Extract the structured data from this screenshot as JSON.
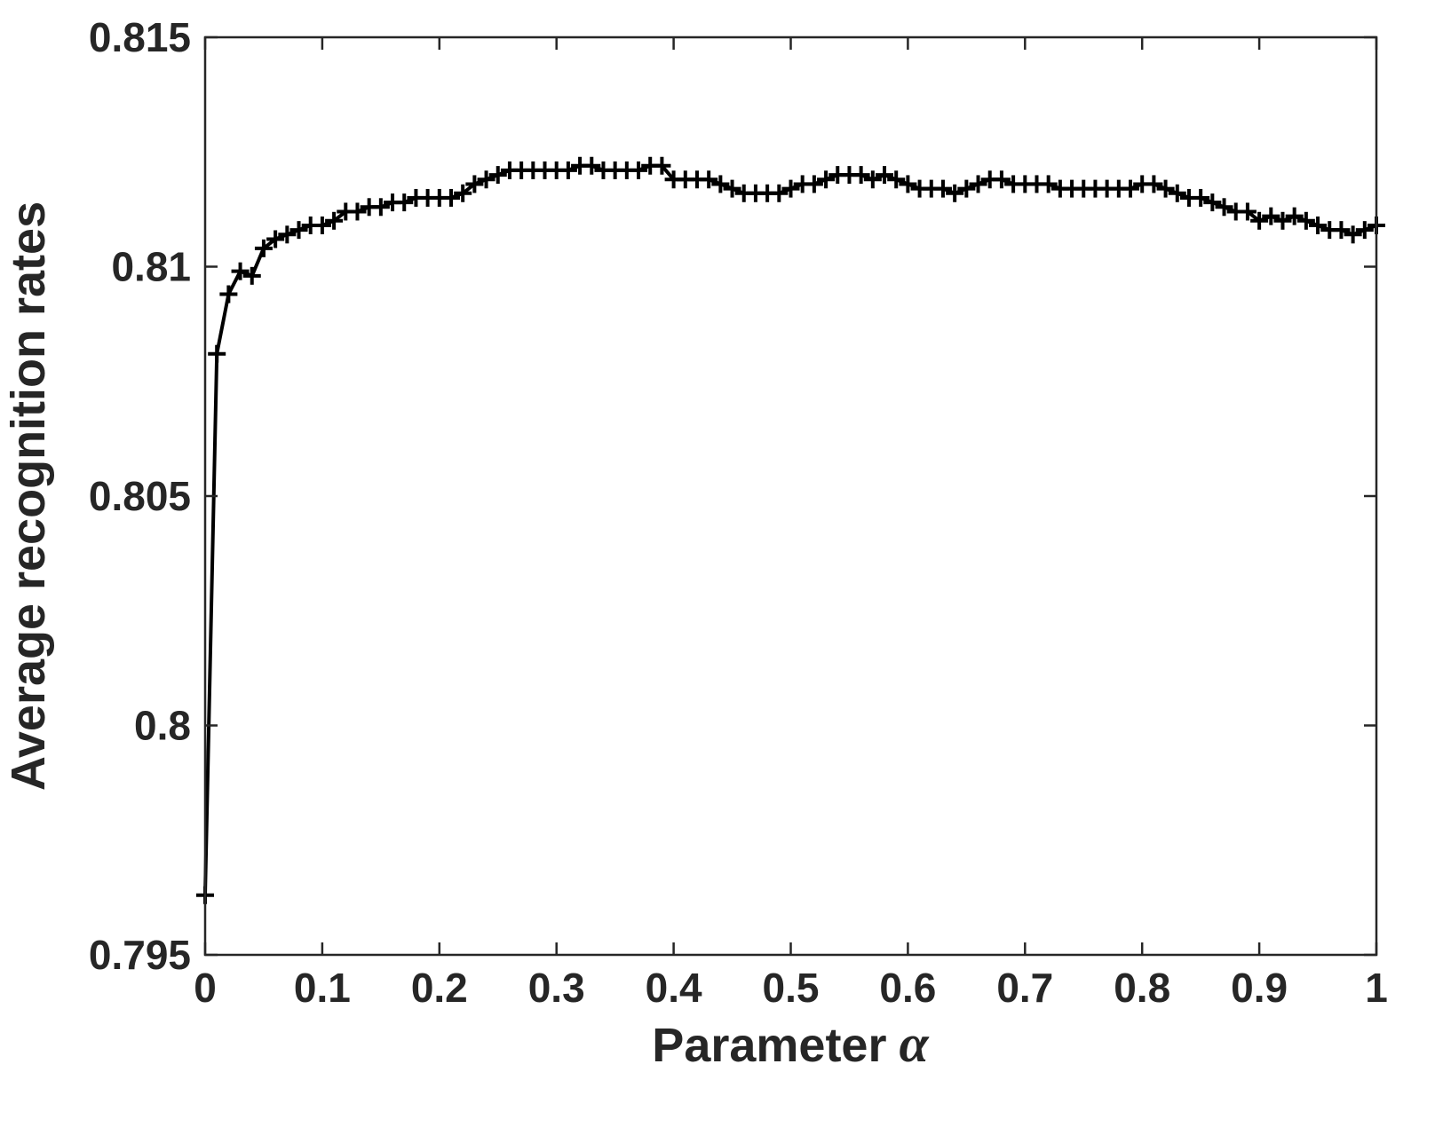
{
  "chart_data": {
    "type": "line",
    "xlabel": "Parameter",
    "xlabel_symbol": "α",
    "ylabel": "Average recognition rates",
    "xlim": [
      0,
      1
    ],
    "ylim": [
      0.795,
      0.815
    ],
    "xticks": [
      "0",
      "0.1",
      "0.2",
      "0.3",
      "0.4",
      "0.5",
      "0.6",
      "0.7",
      "0.8",
      "0.9",
      "1"
    ],
    "yticks": [
      "0.795",
      "0.8",
      "0.805",
      "0.81",
      "0.815"
    ],
    "grid": false,
    "marker": "+",
    "line_color": "#000000",
    "series": [
      {
        "x": [
          0,
          0.01,
          0.02,
          0.03,
          0.04,
          0.05,
          0.06,
          0.07,
          0.08,
          0.09,
          0.1,
          0.11,
          0.12,
          0.13,
          0.14,
          0.15,
          0.16,
          0.17,
          0.18,
          0.19,
          0.2,
          0.21,
          0.22,
          0.23,
          0.24,
          0.25,
          0.26,
          0.27,
          0.28,
          0.29,
          0.3,
          0.31,
          0.32,
          0.33,
          0.34,
          0.35,
          0.36,
          0.37,
          0.38,
          0.39,
          0.4,
          0.41,
          0.42,
          0.43,
          0.44,
          0.45,
          0.46,
          0.47,
          0.48,
          0.49,
          0.5,
          0.51,
          0.52,
          0.53,
          0.54,
          0.55,
          0.56,
          0.57,
          0.58,
          0.59,
          0.6,
          0.61,
          0.62,
          0.63,
          0.64,
          0.65,
          0.66,
          0.67,
          0.68,
          0.69,
          0.7,
          0.71,
          0.72,
          0.73,
          0.74,
          0.75,
          0.76,
          0.77,
          0.78,
          0.79,
          0.8,
          0.81,
          0.82,
          0.83,
          0.84,
          0.85,
          0.86,
          0.87,
          0.88,
          0.89,
          0.9,
          0.91,
          0.92,
          0.93,
          0.94,
          0.95,
          0.96,
          0.97,
          0.98,
          0.99,
          1.0
        ],
        "y": [
          0.7963,
          0.8081,
          0.8094,
          0.8099,
          0.8098,
          0.8104,
          0.8106,
          0.8107,
          0.8108,
          0.8109,
          0.8109,
          0.811,
          0.8112,
          0.8112,
          0.8113,
          0.8113,
          0.8114,
          0.8114,
          0.8115,
          0.8115,
          0.8115,
          0.8115,
          0.8116,
          0.8118,
          0.8119,
          0.812,
          0.8121,
          0.8121,
          0.8121,
          0.8121,
          0.8121,
          0.8121,
          0.8122,
          0.8122,
          0.8121,
          0.8121,
          0.8121,
          0.8121,
          0.8122,
          0.8122,
          0.8119,
          0.8119,
          0.8119,
          0.8119,
          0.8118,
          0.8117,
          0.8116,
          0.8116,
          0.8116,
          0.8116,
          0.8117,
          0.8118,
          0.8118,
          0.8119,
          0.812,
          0.812,
          0.812,
          0.8119,
          0.812,
          0.8119,
          0.8118,
          0.8117,
          0.8117,
          0.8117,
          0.8116,
          0.8117,
          0.8118,
          0.8119,
          0.8119,
          0.8118,
          0.8118,
          0.8118,
          0.8118,
          0.8117,
          0.8117,
          0.8117,
          0.8117,
          0.8117,
          0.8117,
          0.8117,
          0.8118,
          0.8118,
          0.8117,
          0.8116,
          0.8115,
          0.8115,
          0.8114,
          0.8113,
          0.8112,
          0.8112,
          0.811,
          0.8111,
          0.811,
          0.8111,
          0.811,
          0.8109,
          0.8108,
          0.8108,
          0.8107,
          0.8108,
          0.8109
        ]
      }
    ]
  }
}
